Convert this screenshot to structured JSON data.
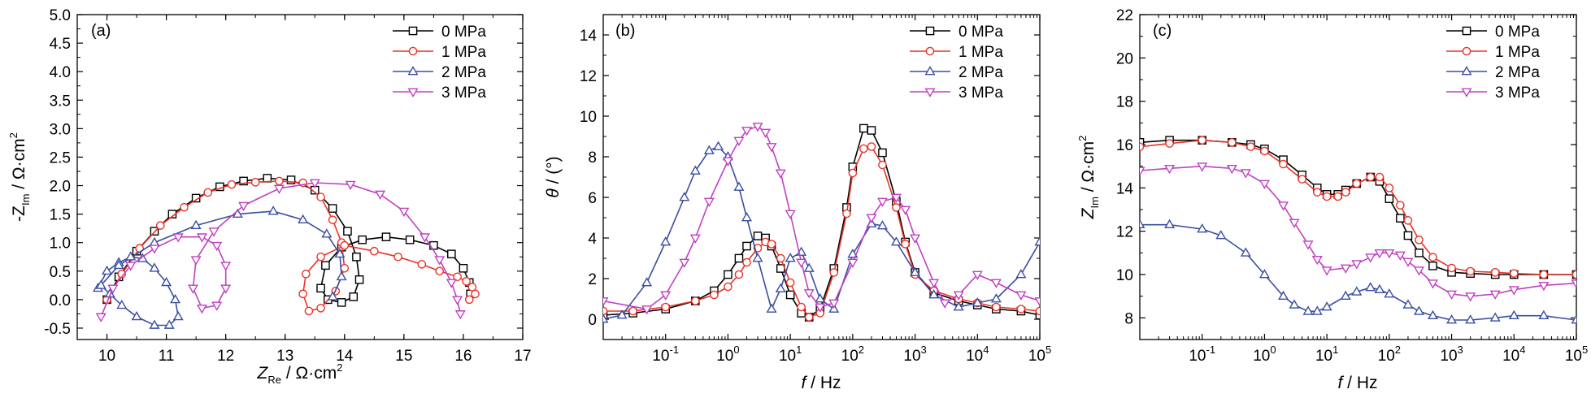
{
  "chart_data": [
    {
      "type": "scatter",
      "panel_label": "(a)",
      "xlabel": {
        "main": "Z",
        "sub": "Re",
        "unit": " / Ω·cm",
        "sup": "2"
      },
      "ylabel": {
        "main": "-Z",
        "sub": "Im",
        "unit": " / Ω·cm",
        "sup": "2"
      },
      "xlim": [
        9.5,
        17
      ],
      "ylim": [
        -0.7,
        5
      ],
      "xticks": [
        "10",
        "11",
        "12",
        "13",
        "14",
        "15",
        "16",
        "17"
      ],
      "yticks": [
        "-0.5",
        "0.0",
        "0.5",
        "1.0",
        "1.5",
        "2.0",
        "2.5",
        "3.0",
        "3.5",
        "4.0",
        "4.5",
        "5.0"
      ],
      "legend_position": "top-right",
      "series": [
        {
          "name": "0 MPa",
          "color": "#000000",
          "marker": "square",
          "x": [
            10.0,
            10.2,
            10.5,
            10.8,
            11.1,
            11.5,
            11.9,
            12.3,
            12.7,
            13.1,
            13.5,
            13.8,
            14.05,
            14.2,
            14.25,
            14.15,
            13.95,
            13.72,
            13.6,
            13.68,
            13.95,
            14.3,
            14.7,
            15.1,
            15.5,
            15.8,
            16.0,
            16.1,
            16.12
          ],
          "y": [
            0.0,
            0.4,
            0.85,
            1.2,
            1.5,
            1.78,
            1.98,
            2.08,
            2.13,
            2.1,
            1.92,
            1.6,
            1.2,
            0.75,
            0.35,
            0.05,
            -0.05,
            0.0,
            0.2,
            0.6,
            0.92,
            1.05,
            1.1,
            1.05,
            0.95,
            0.8,
            0.55,
            0.3,
            0.1
          ]
        },
        {
          "name": "1 MPa",
          "color": "#e8342a",
          "marker": "circle",
          "x": [
            10.0,
            10.25,
            10.55,
            10.9,
            11.3,
            11.7,
            12.1,
            12.5,
            12.9,
            13.3,
            13.6,
            13.8,
            13.95,
            14.0,
            13.85,
            13.6,
            13.4,
            13.3,
            13.35,
            13.6,
            14.0,
            14.5,
            14.9,
            15.3,
            15.6,
            15.9,
            16.05,
            16.15,
            16.2,
            16.1
          ],
          "y": [
            0.0,
            0.45,
            0.9,
            1.3,
            1.62,
            1.88,
            2.02,
            2.06,
            2.08,
            2.05,
            1.8,
            1.4,
            1.0,
            0.55,
            0.15,
            -0.15,
            -0.2,
            0.1,
            0.45,
            0.75,
            0.95,
            0.85,
            0.75,
            0.62,
            0.5,
            0.4,
            0.32,
            0.22,
            0.1,
            0.0
          ]
        },
        {
          "name": "2 MPa",
          "color": "#3a4ea1",
          "marker": "triangle-up",
          "x": [
            9.85,
            10.0,
            10.2,
            10.4,
            10.6,
            10.8,
            11.0,
            11.15,
            11.2,
            11.05,
            10.8,
            10.5,
            10.25,
            10.05,
            9.9,
            10.2,
            10.8,
            11.5,
            12.2,
            12.8,
            13.3,
            13.7,
            13.92,
            13.95,
            13.8
          ],
          "y": [
            0.2,
            0.5,
            0.65,
            0.75,
            0.72,
            0.55,
            0.3,
            0.0,
            -0.3,
            -0.45,
            -0.45,
            -0.3,
            -0.1,
            0.1,
            0.25,
            0.6,
            1.0,
            1.3,
            1.5,
            1.55,
            1.4,
            1.15,
            0.8,
            0.4,
            0.05
          ]
        },
        {
          "name": "3 MPa",
          "color": "#c13fc3",
          "marker": "triangle-down",
          "x": [
            9.9,
            10.1,
            10.4,
            10.8,
            11.2,
            11.6,
            11.85,
            12.0,
            12.0,
            11.85,
            11.6,
            11.45,
            11.5,
            11.8,
            12.3,
            12.9,
            13.5,
            14.1,
            14.6,
            15.0,
            15.35,
            15.6,
            15.8,
            15.9,
            15.95
          ],
          "y": [
            -0.3,
            0.2,
            0.6,
            0.9,
            1.1,
            1.1,
            0.95,
            0.6,
            0.2,
            -0.1,
            -0.15,
            0.2,
            0.7,
            1.2,
            1.65,
            1.95,
            2.05,
            2.02,
            1.85,
            1.55,
            1.1,
            0.7,
            0.3,
            0.0,
            -0.25
          ]
        }
      ]
    },
    {
      "type": "line",
      "panel_label": "(b)",
      "xlabel": {
        "main": "f",
        "unit": " / Hz"
      },
      "ylabel": {
        "main": "θ",
        "unit": " / (°)"
      },
      "xscale": "log",
      "xlim": [
        0.01,
        100000
      ],
      "ylim": [
        -1,
        15
      ],
      "xticks": [
        {
          "b": "10",
          "e": "-1",
          "v": 0.1
        },
        {
          "b": "10",
          "e": "0",
          "v": 1
        },
        {
          "b": "10",
          "e": "1",
          "v": 10
        },
        {
          "b": "10",
          "e": "2",
          "v": 100
        },
        {
          "b": "10",
          "e": "3",
          "v": 1000
        },
        {
          "b": "10",
          "e": "4",
          "v": 10000
        },
        {
          "b": "10",
          "e": "5",
          "v": 100000
        }
      ],
      "yticks": [
        "0",
        "2",
        "4",
        "6",
        "8",
        "10",
        "12",
        "14"
      ],
      "legend_position": "top-right",
      "series": [
        {
          "name": "0 MPa",
          "color": "#000000",
          "marker": "square",
          "x": [
            0.01,
            0.03,
            0.1,
            0.3,
            0.6,
            1,
            1.5,
            2,
            3,
            4,
            5,
            7,
            10,
            15,
            20,
            30,
            50,
            80,
            100,
            150,
            200,
            300,
            500,
            700,
            1000,
            2000,
            5000,
            10000,
            20000,
            50000,
            100000
          ],
          "y": [
            0.2,
            0.3,
            0.5,
            0.9,
            1.4,
            2.2,
            3,
            3.6,
            4.1,
            4,
            3.6,
            2.5,
            1.2,
            0.3,
            0.1,
            0.5,
            2.5,
            5.5,
            7.5,
            9.4,
            9.3,
            8.2,
            5.8,
            3.8,
            2.3,
            1.3,
            0.9,
            0.7,
            0.5,
            0.4,
            0.2
          ]
        },
        {
          "name": "1 MPa",
          "color": "#e8342a",
          "marker": "circle",
          "x": [
            0.01,
            0.03,
            0.1,
            0.3,
            0.6,
            1,
            1.5,
            2,
            3,
            4,
            5,
            7,
            10,
            15,
            20,
            30,
            50,
            80,
            100,
            150,
            200,
            300,
            500,
            700,
            1000,
            2000,
            5000,
            10000,
            20000,
            50000,
            100000
          ],
          "y": [
            0.4,
            0.4,
            0.6,
            0.9,
            1.2,
            1.6,
            2.2,
            2.8,
            3.5,
            3.8,
            3.7,
            3,
            1.8,
            0.6,
            0.1,
            0.3,
            2.3,
            5.2,
            7.2,
            8.4,
            8.5,
            7.6,
            5.5,
            3.7,
            2.2,
            1.4,
            1,
            0.8,
            0.6,
            0.5,
            0.4
          ]
        },
        {
          "name": "2 MPa",
          "color": "#3a4ea1",
          "marker": "triangle-up",
          "x": [
            0.01,
            0.02,
            0.05,
            0.1,
            0.2,
            0.3,
            0.5,
            0.7,
            1,
            1.5,
            2,
            3,
            5,
            7,
            10,
            15,
            20,
            30,
            50,
            100,
            200,
            300,
            500,
            1000,
            2000,
            5000,
            10000,
            20000,
            50000,
            100000
          ],
          "y": [
            0,
            0.2,
            1.8,
            3.8,
            6,
            7.3,
            8.3,
            8.5,
            8,
            6.5,
            5,
            3,
            0.5,
            1.5,
            3,
            3.3,
            2.5,
            1,
            0.5,
            3.2,
            4.7,
            4.6,
            3.8,
            2.3,
            1.2,
            0.6,
            0.8,
            1,
            2.2,
            3.8
          ]
        },
        {
          "name": "3 MPa",
          "color": "#c13fc3",
          "marker": "triangle-down",
          "x": [
            0.01,
            0.05,
            0.1,
            0.2,
            0.3,
            0.5,
            1,
            1.5,
            2,
            3,
            4,
            5,
            7,
            10,
            15,
            20,
            30,
            50,
            100,
            200,
            300,
            500,
            700,
            1000,
            2000,
            3000,
            5000,
            10000,
            20000,
            50000,
            100000
          ],
          "y": [
            0.9,
            0.5,
            1.2,
            2.8,
            4,
            5.8,
            7.8,
            8.8,
            9.3,
            9.5,
            9.2,
            8.5,
            7.2,
            5.2,
            2.8,
            1.3,
            0.6,
            0.8,
            2.8,
            5,
            5.8,
            6,
            5.4,
            4,
            1.8,
            0.8,
            1.2,
            2.2,
            1.8,
            1.2,
            0.9
          ]
        }
      ]
    },
    {
      "type": "line",
      "panel_label": "(c)",
      "xlabel": {
        "main": "f",
        "unit": " / Hz"
      },
      "ylabel": {
        "main": "Z",
        "sub": "Im",
        "unit": " / Ω·cm",
        "sup": "2"
      },
      "xscale": "log",
      "xlim": [
        0.01,
        100000
      ],
      "ylim": [
        7,
        22
      ],
      "xticks": [
        {
          "b": "10",
          "e": "-1",
          "v": 0.1
        },
        {
          "b": "10",
          "e": "0",
          "v": 1
        },
        {
          "b": "10",
          "e": "1",
          "v": 10
        },
        {
          "b": "10",
          "e": "2",
          "v": 100
        },
        {
          "b": "10",
          "e": "3",
          "v": 1000
        },
        {
          "b": "10",
          "e": "4",
          "v": 10000
        },
        {
          "b": "10",
          "e": "5",
          "v": 100000
        }
      ],
      "yticks": [
        "8",
        "10",
        "12",
        "14",
        "16",
        "18",
        "20",
        "22"
      ],
      "legend_position": "top-right",
      "series": [
        {
          "name": "0 MPa",
          "color": "#000000",
          "marker": "square",
          "x": [
            0.01,
            0.03,
            0.1,
            0.3,
            0.6,
            1,
            2,
            4,
            7,
            10,
            15,
            20,
            30,
            50,
            70,
            100,
            150,
            200,
            300,
            500,
            1000,
            2000,
            5000,
            10000,
            30000,
            100000
          ],
          "y": [
            16.1,
            16.2,
            16.2,
            16.1,
            16,
            15.8,
            15.3,
            14.6,
            14,
            13.7,
            13.7,
            13.9,
            14.2,
            14.5,
            14.3,
            13.5,
            12.6,
            11.8,
            11,
            10.4,
            10.1,
            10.05,
            10,
            10,
            10,
            10
          ]
        },
        {
          "name": "1 MPa",
          "color": "#e8342a",
          "marker": "circle",
          "x": [
            0.01,
            0.03,
            0.1,
            0.3,
            0.6,
            1,
            2,
            4,
            7,
            10,
            15,
            20,
            30,
            50,
            70,
            100,
            150,
            200,
            300,
            500,
            1000,
            2000,
            5000,
            10000,
            30000,
            100000
          ],
          "y": [
            15.9,
            16.05,
            16.2,
            16.1,
            15.9,
            15.7,
            15.1,
            14.4,
            13.8,
            13.6,
            13.6,
            13.8,
            14.2,
            14.5,
            14.5,
            14,
            13.2,
            12.5,
            11.6,
            10.8,
            10.3,
            10.15,
            10.1,
            10.05,
            10,
            10
          ]
        },
        {
          "name": "2 MPa",
          "color": "#3a4ea1",
          "marker": "triangle-up",
          "x": [
            0.01,
            0.03,
            0.1,
            0.2,
            0.5,
            1,
            2,
            3,
            5,
            7,
            10,
            20,
            30,
            50,
            70,
            100,
            200,
            300,
            500,
            1000,
            2000,
            5000,
            10000,
            30000,
            100000
          ],
          "y": [
            12.3,
            12.3,
            12.1,
            11.8,
            11,
            10,
            9,
            8.6,
            8.3,
            8.3,
            8.5,
            9,
            9.2,
            9.4,
            9.3,
            9.1,
            8.6,
            8.3,
            8.1,
            7.9,
            7.9,
            8,
            8.1,
            8.1,
            7.9
          ]
        },
        {
          "name": "3 MPa",
          "color": "#c13fc3",
          "marker": "triangle-down",
          "x": [
            0.01,
            0.03,
            0.1,
            0.3,
            0.5,
            1,
            2,
            3,
            5,
            7,
            10,
            20,
            30,
            50,
            70,
            100,
            150,
            200,
            300,
            500,
            1000,
            2000,
            5000,
            10000,
            30000,
            100000
          ],
          "y": [
            14.8,
            14.9,
            15,
            14.9,
            14.7,
            14.2,
            13.2,
            12.4,
            11.4,
            10.7,
            10.2,
            10.3,
            10.5,
            10.8,
            11,
            11,
            10.9,
            10.6,
            10.2,
            9.6,
            9.1,
            9,
            9.1,
            9.3,
            9.5,
            9.6
          ]
        }
      ]
    }
  ]
}
